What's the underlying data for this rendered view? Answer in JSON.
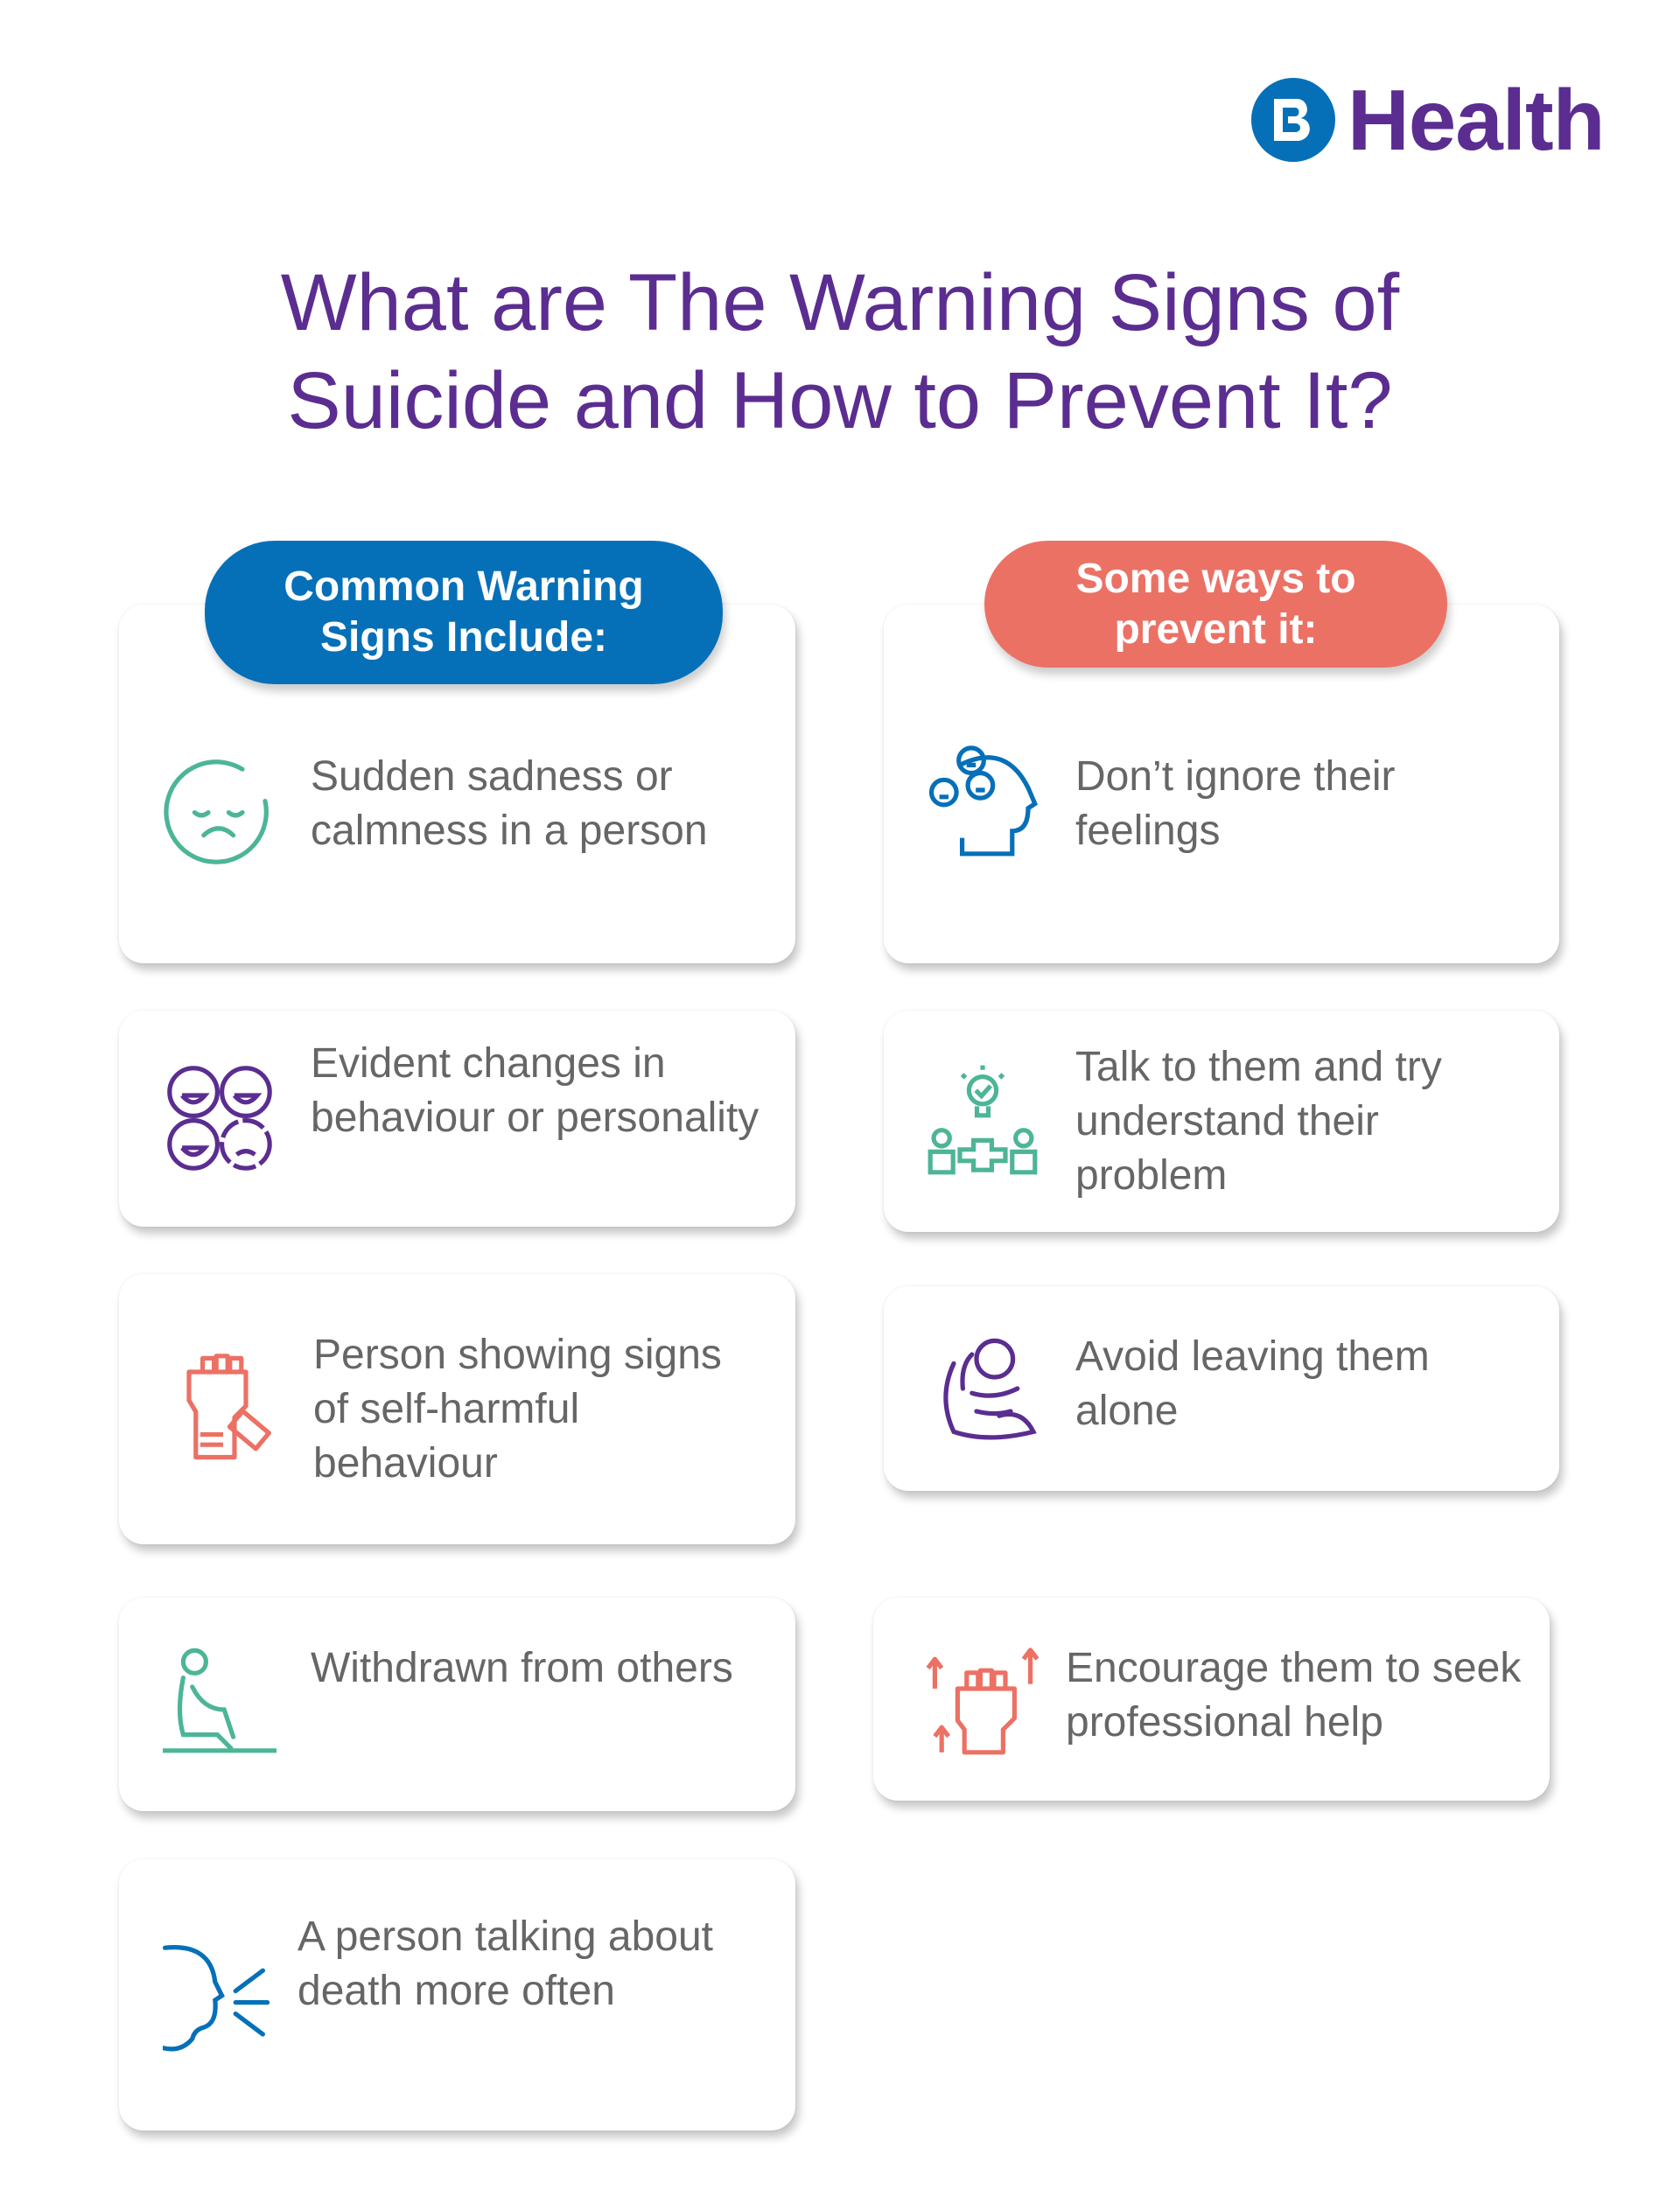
{
  "brand": {
    "logo_letter": "B",
    "name": "Health",
    "colors": {
      "blue": "#0570b8",
      "purple": "#5b2d90",
      "coral": "#ec7165",
      "teal": "#4db597",
      "text": "#666666"
    }
  },
  "title": {
    "line1": "What are The Warning Signs of",
    "line2": "Suicide and How to Prevent It?"
  },
  "warning": {
    "heading_line1": "Common Warning",
    "heading_line2": "Signs Include:",
    "items": [
      {
        "text": "Sudden sadness or calmness in a person",
        "icon": "sad-face-icon"
      },
      {
        "text": "Evident changes in behaviour or personality",
        "icon": "mood-faces-icon"
      },
      {
        "text": "Person showing signs of self-harmful behaviour",
        "icon": "fist-blade-icon"
      },
      {
        "text": "Withdrawn from others",
        "icon": "sitting-person-icon"
      },
      {
        "text": "A person talking about death more often",
        "icon": "speaking-head-icon"
      }
    ]
  },
  "prevent": {
    "heading_line1": "Some ways to",
    "heading_line2": "prevent it:",
    "items": [
      {
        "text": "Don’t ignore their feelings",
        "icon": "head-emotions-icon"
      },
      {
        "text": "Talk to them and try understand their problem",
        "icon": "people-idea-icon"
      },
      {
        "text": "Avoid leaving them alone",
        "icon": "hugging-person-icon"
      },
      {
        "text": "Encourage them to seek professional help",
        "icon": "raised-fist-arrows-icon"
      }
    ]
  }
}
